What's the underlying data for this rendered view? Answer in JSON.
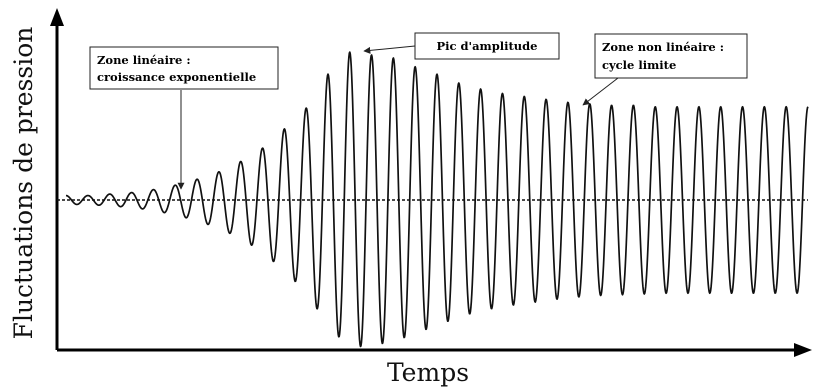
{
  "chart_data": {
    "type": "line",
    "xlabel": "Temps",
    "ylabel": "Fluctuations de pression",
    "grid": false,
    "legend": "none",
    "baseline": 0,
    "line_color": "#111111",
    "series": [
      {
        "peaks": [
          0.03,
          0.03,
          0.04,
          0.05,
          0.07,
          0.1,
          0.14,
          0.19,
          0.26,
          0.35,
          0.48,
          0.62,
          0.85,
          1.0,
          0.98,
          0.96,
          0.9,
          0.85,
          0.79,
          0.75,
          0.72,
          0.7,
          0.68,
          0.66,
          0.65,
          0.64,
          0.64,
          0.63,
          0.63,
          0.63,
          0.63,
          0.63,
          0.63,
          0.63
        ]
      }
    ],
    "annotations": [
      {
        "lines": [
          "Zone linéaire :",
          "croissance exponentielle"
        ]
      },
      {
        "lines": [
          "Pic d'amplitude"
        ]
      },
      {
        "lines": [
          "Zone non linéaire :",
          "cycle limite"
        ]
      }
    ]
  }
}
